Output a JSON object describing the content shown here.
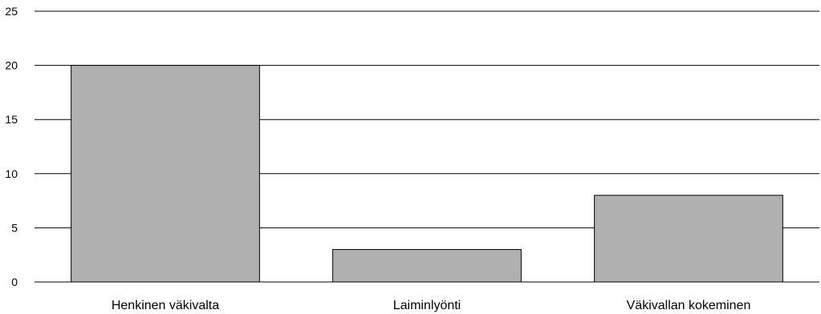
{
  "chart_data": {
    "type": "bar",
    "title": "",
    "xlabel": "",
    "ylabel": "",
    "categories": [
      "Henkinen väkivalta",
      "Laiminlyönti",
      "Väkivallan kokeminen"
    ],
    "values": [
      20,
      3,
      8
    ],
    "ylim": [
      0,
      25
    ],
    "yticks": [
      0,
      5,
      10,
      15,
      20,
      25
    ],
    "grid": true,
    "legend": "none",
    "colors": {
      "bar": "#b0b0b0",
      "bar_stroke": "#000000",
      "grid": "#000000"
    }
  }
}
